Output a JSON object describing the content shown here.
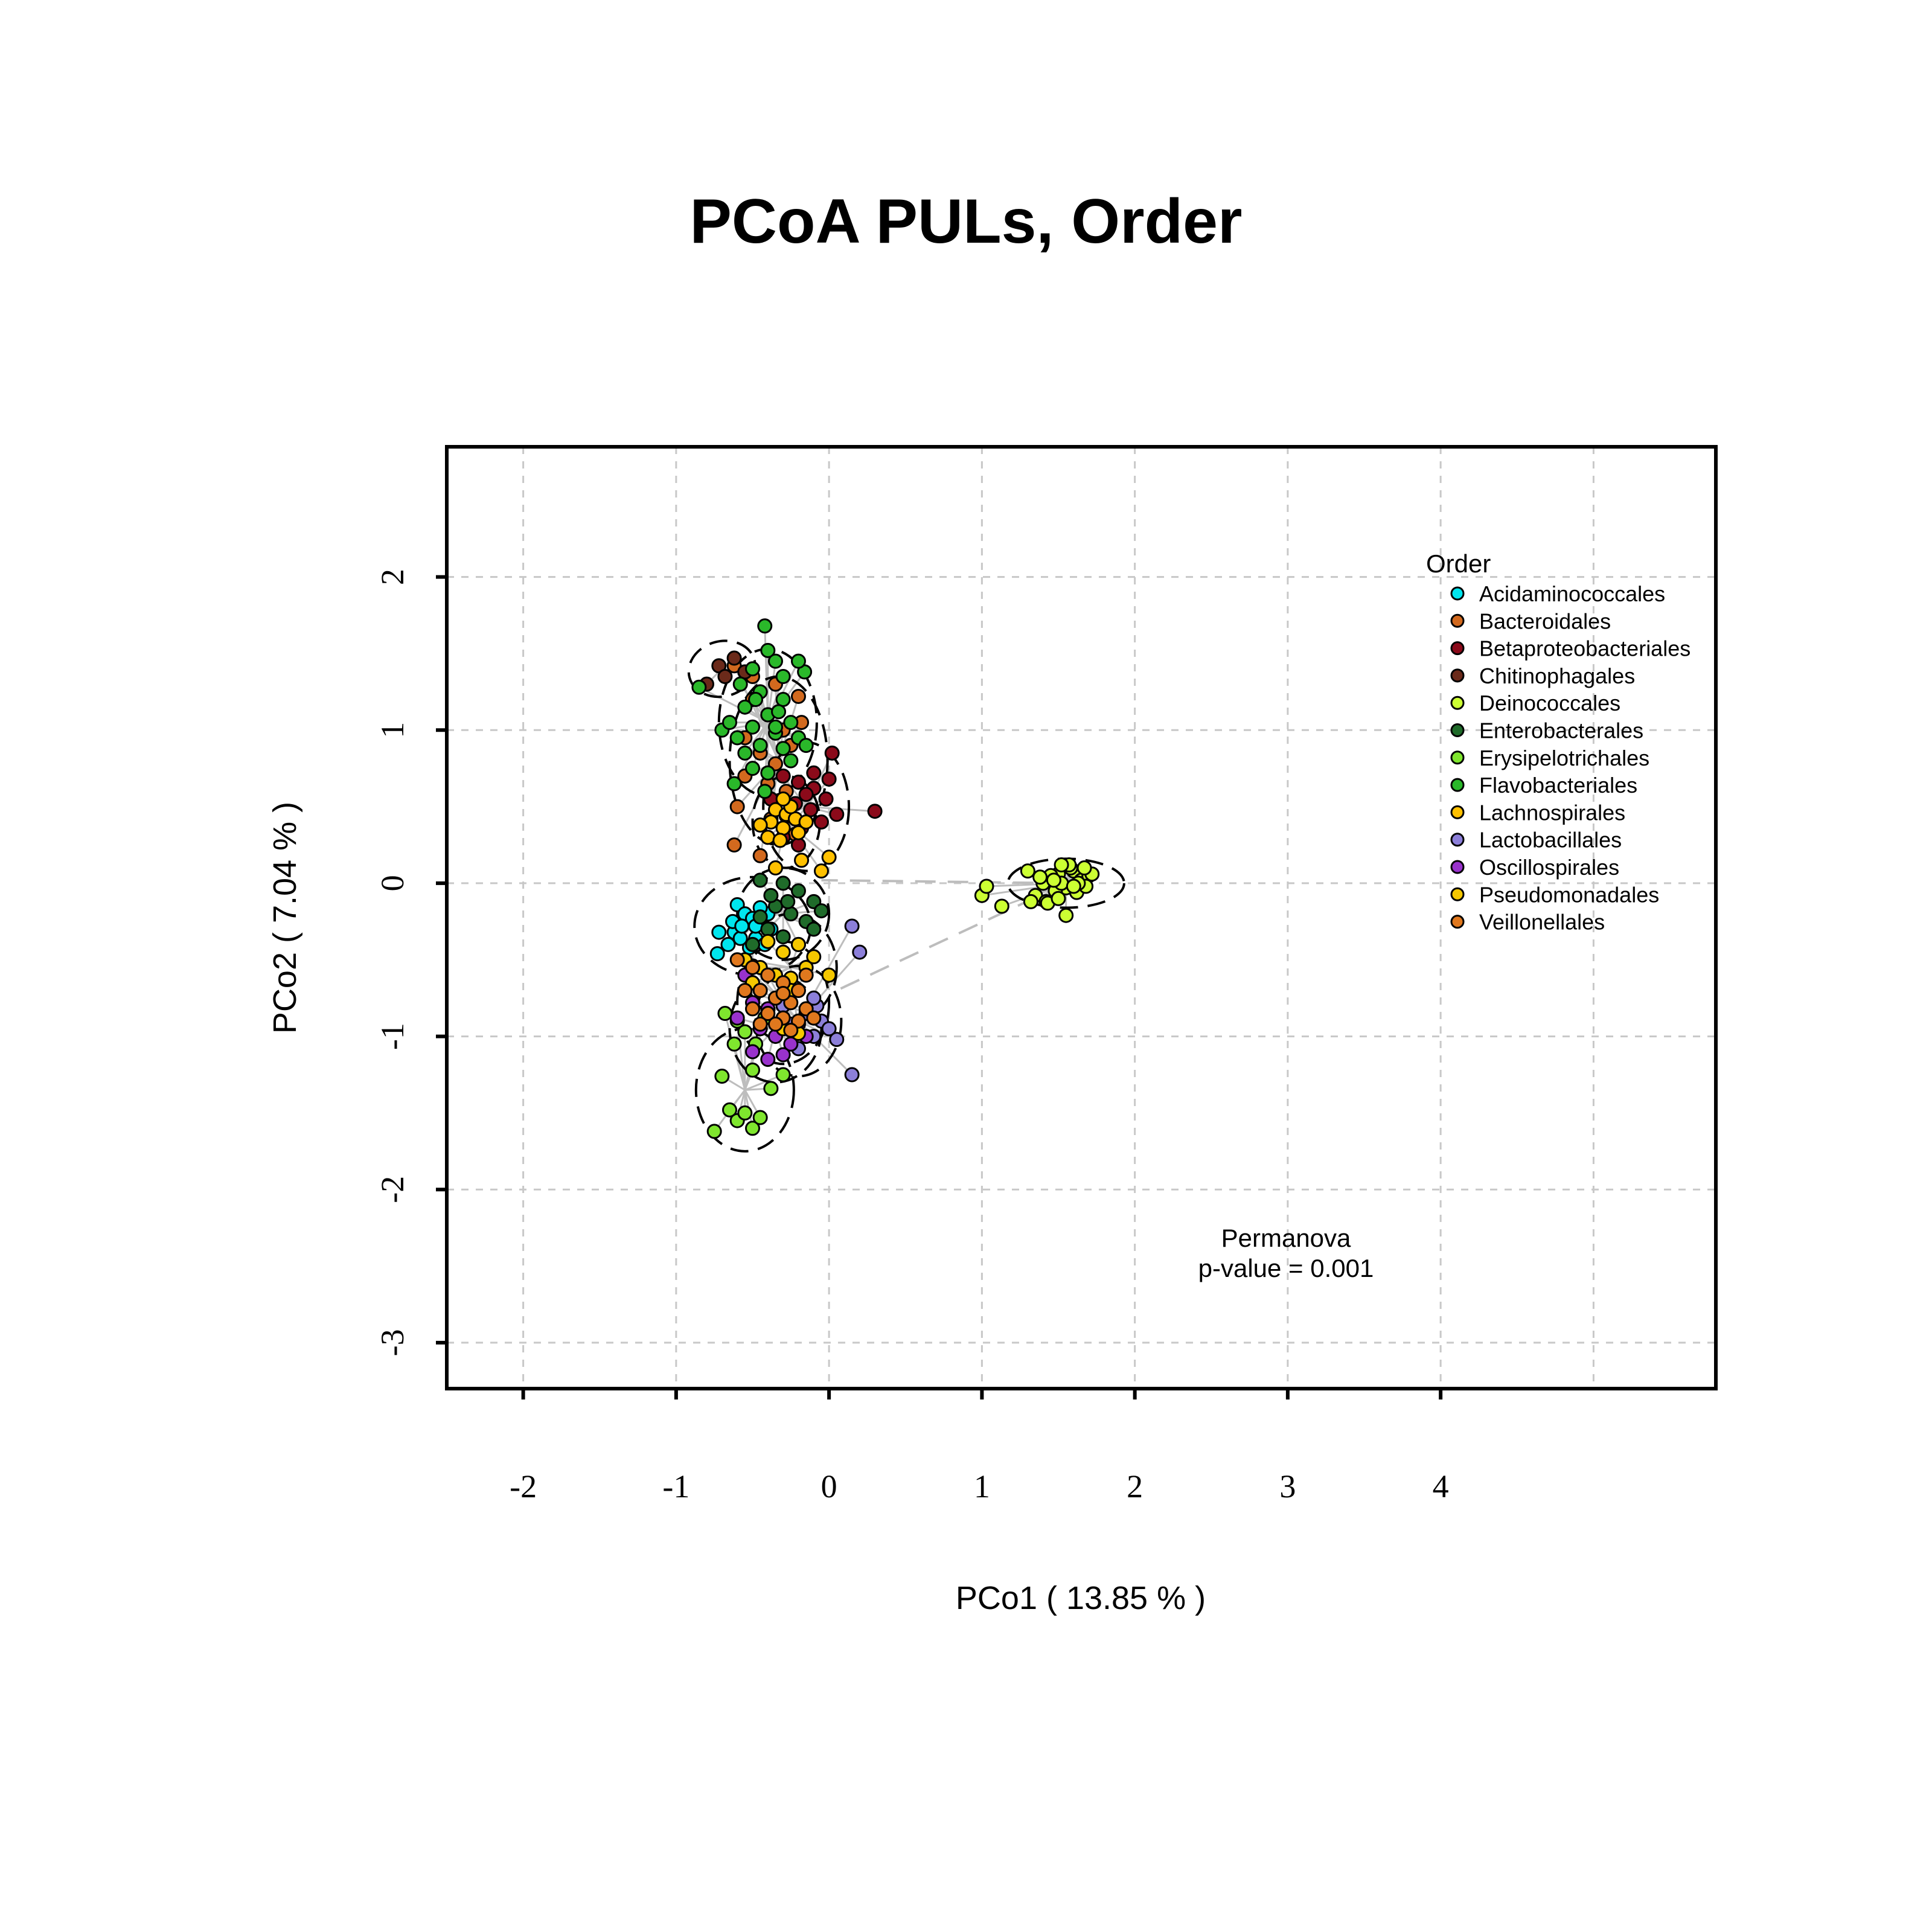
{
  "chart_data": {
    "type": "scatter",
    "title": "PCoA PULs, Order",
    "xlabel": "PCo1 ( 13.85 % )",
    "ylabel": "PCo2 ( 7.04 % )",
    "xlim": [
      -2.5,
      5.8
    ],
    "ylim": [
      -3.3,
      2.85
    ],
    "xticks": [
      -2,
      -1,
      0,
      1,
      2,
      3,
      4
    ],
    "yticks": [
      -3,
      -2,
      -1,
      0,
      1,
      2
    ],
    "xtick_labels": [
      "-2",
      "-1",
      "0",
      "1",
      "2",
      "3",
      "4"
    ],
    "ytick_labels": [
      "-3",
      "-2",
      "-1",
      "0",
      "1",
      "2"
    ],
    "xgrid": [
      -2,
      -1,
      0,
      1,
      2,
      3,
      4,
      5
    ],
    "ygrid": [
      -3,
      -2,
      -1,
      0,
      1,
      2
    ],
    "grid": true,
    "legend": {
      "title": "Order",
      "position": "top-right",
      "entries": [
        {
          "name": "Acidaminococcales",
          "color": "#00e5ee"
        },
        {
          "name": "Bacteroidales",
          "color": "#d2691e"
        },
        {
          "name": "Betaproteobacteriales",
          "color": "#8b0a1a"
        },
        {
          "name": "Chitinophagales",
          "color": "#6b2a1a"
        },
        {
          "name": "Deinococcales",
          "color": "#ccff33"
        },
        {
          "name": "Enterobacterales",
          "color": "#1f6b2a"
        },
        {
          "name": "Erysipelotrichales",
          "color": "#7fe62e"
        },
        {
          "name": "Flavobacteriales",
          "color": "#2ab82a"
        },
        {
          "name": "Lachnospirales",
          "color": "#ffc000"
        },
        {
          "name": "Lactobacillales",
          "color": "#8c7fd9"
        },
        {
          "name": "Oscillospirales",
          "color": "#9932cc"
        },
        {
          "name": "Pseudomonadales",
          "color": "#f5c800"
        },
        {
          "name": "Veillonellales",
          "color": "#e0781e"
        }
      ]
    },
    "annotation": [
      "Permanova",
      "p-value = 0.001"
    ],
    "series": [
      {
        "name": "Acidaminococcales",
        "color": "#00e5ee",
        "centroid": [
          -0.5,
          -0.28
        ],
        "ellipse": {
          "rx": 0.38,
          "ry": 0.32,
          "angle": 0
        },
        "points": [
          [
            -0.72,
            -0.32
          ],
          [
            -0.73,
            -0.46
          ],
          [
            -0.6,
            -0.14
          ],
          [
            -0.55,
            -0.2
          ],
          [
            -0.5,
            -0.23
          ],
          [
            -0.45,
            -0.26
          ],
          [
            -0.38,
            -0.3
          ],
          [
            -0.52,
            -0.42
          ],
          [
            -0.48,
            -0.36
          ],
          [
            -0.62,
            -0.32
          ],
          [
            -0.58,
            -0.36
          ],
          [
            -0.42,
            -0.4
          ],
          [
            -0.55,
            -0.5
          ],
          [
            -0.48,
            -0.28
          ],
          [
            -0.63,
            -0.25
          ],
          [
            -0.4,
            -0.2
          ],
          [
            -0.66,
            -0.4
          ],
          [
            -0.5,
            -0.54
          ],
          [
            -0.45,
            -0.16
          ],
          [
            -0.57,
            -0.28
          ]
        ]
      },
      {
        "name": "Bacteroidales",
        "color": "#d2691e",
        "centroid": [
          -0.33,
          0.8
        ],
        "ellipse": {
          "rx": 0.32,
          "ry": 0.55,
          "angle": 0
        },
        "points": [
          [
            -0.62,
            1.42
          ],
          [
            -0.5,
            1.35
          ],
          [
            -0.35,
            1.3
          ],
          [
            -0.2,
            1.22
          ],
          [
            -0.4,
            1.1
          ],
          [
            -0.3,
            1.0
          ],
          [
            -0.55,
            0.95
          ],
          [
            -0.45,
            0.85
          ],
          [
            -0.25,
            0.9
          ],
          [
            -0.35,
            0.78
          ],
          [
            -0.55,
            0.7
          ],
          [
            -0.4,
            0.65
          ],
          [
            -0.28,
            0.6
          ],
          [
            -0.5,
            1.2
          ],
          [
            -0.18,
            1.05
          ],
          [
            -0.6,
            0.5
          ],
          [
            -0.38,
            0.42
          ],
          [
            -0.22,
            0.32
          ],
          [
            -0.62,
            0.25
          ],
          [
            -0.45,
            0.18
          ]
        ]
      },
      {
        "name": "Betaproteobacteriales",
        "color": "#8b0a1a",
        "centroid": [
          -0.15,
          0.5
        ],
        "ellipse": {
          "rx": 0.28,
          "ry": 0.42,
          "angle": 0
        },
        "points": [
          [
            -0.3,
            0.7
          ],
          [
            -0.2,
            0.66
          ],
          [
            -0.1,
            0.62
          ],
          [
            -0.02,
            0.55
          ],
          [
            -0.22,
            0.52
          ],
          [
            -0.12,
            0.48
          ],
          [
            -0.28,
            0.44
          ],
          [
            -0.05,
            0.4
          ],
          [
            -0.18,
            0.36
          ],
          [
            -0.3,
            0.3
          ],
          [
            0.05,
            0.45
          ],
          [
            0.3,
            0.47
          ],
          [
            -0.1,
            0.72
          ],
          [
            -0.38,
            0.55
          ],
          [
            0.0,
            0.68
          ],
          [
            -0.2,
            0.25
          ],
          [
            0.02,
            0.85
          ],
          [
            -0.15,
            0.58
          ]
        ]
      },
      {
        "name": "Chitinophagales",
        "color": "#6b2a1a",
        "centroid": [
          -0.7,
          1.4
        ],
        "ellipse": {
          "rx": 0.22,
          "ry": 0.18,
          "angle": -15
        },
        "points": [
          [
            -0.72,
            1.42
          ],
          [
            -0.62,
            1.47
          ],
          [
            -0.55,
            1.38
          ],
          [
            -0.8,
            1.3
          ],
          [
            -0.68,
            1.35
          ]
        ]
      },
      {
        "name": "Deinococcales",
        "color": "#ccff33",
        "centroid": [
          1.55,
          0.0
        ],
        "ellipse": {
          "rx": 0.38,
          "ry": 0.16,
          "angle": 0
        },
        "points": [
          [
            1.3,
            0.08
          ],
          [
            1.4,
            0.0
          ],
          [
            1.5,
            0.06
          ],
          [
            1.55,
            -0.03
          ],
          [
            1.6,
            0.08
          ],
          [
            1.65,
            0.02
          ],
          [
            1.7,
            0.05
          ],
          [
            1.48,
            -0.05
          ],
          [
            1.58,
            0.1
          ],
          [
            1.62,
            -0.06
          ],
          [
            1.45,
            0.05
          ],
          [
            1.52,
            0.0
          ],
          [
            1.68,
            -0.02
          ],
          [
            1.35,
            -0.08
          ],
          [
            1.72,
            0.06
          ],
          [
            1.57,
            0.12
          ],
          [
            1.42,
            -0.12
          ],
          [
            1.63,
            0.0
          ],
          [
            1.55,
            -0.21
          ],
          [
            1.47,
            0.02
          ],
          [
            1.32,
            -0.12
          ],
          [
            1.38,
            0.04
          ],
          [
            1.52,
            0.12
          ],
          [
            1.6,
            -0.02
          ],
          [
            1.0,
            -0.08
          ],
          [
            1.03,
            -0.02
          ],
          [
            1.13,
            -0.15
          ],
          [
            1.43,
            -0.13
          ],
          [
            1.5,
            -0.1
          ],
          [
            1.67,
            0.1
          ]
        ]
      },
      {
        "name": "Enterobacterales",
        "color": "#1f6b2a",
        "centroid": [
          -0.3,
          -0.2
        ],
        "ellipse": {
          "rx": 0.3,
          "ry": 0.3,
          "angle": 0
        },
        "points": [
          [
            -0.45,
            0.02
          ],
          [
            -0.3,
            0.0
          ],
          [
            -0.2,
            -0.05
          ],
          [
            -0.1,
            -0.12
          ],
          [
            -0.35,
            -0.15
          ],
          [
            -0.25,
            -0.2
          ],
          [
            -0.15,
            -0.25
          ],
          [
            -0.4,
            -0.3
          ],
          [
            -0.3,
            -0.35
          ],
          [
            -0.2,
            -0.4
          ],
          [
            -0.5,
            -0.4
          ],
          [
            -0.1,
            -0.3
          ],
          [
            -0.38,
            -0.08
          ],
          [
            -0.27,
            -0.12
          ],
          [
            -0.45,
            -0.22
          ],
          [
            -0.05,
            -0.18
          ]
        ]
      },
      {
        "name": "Erysipelotrichales",
        "color": "#7fe62e",
        "centroid": [
          -0.55,
          -1.35
        ],
        "ellipse": {
          "rx": 0.32,
          "ry": 0.4,
          "angle": 0
        },
        "points": [
          [
            -0.75,
            -1.62
          ],
          [
            -0.6,
            -1.55
          ],
          [
            -0.5,
            -1.6
          ],
          [
            -0.55,
            -1.5
          ],
          [
            -0.65,
            -1.48
          ],
          [
            -0.45,
            -1.53
          ],
          [
            -0.7,
            -1.26
          ],
          [
            -0.5,
            -1.22
          ],
          [
            -0.38,
            -1.34
          ],
          [
            -0.3,
            -1.25
          ],
          [
            -0.62,
            -1.05
          ],
          [
            -0.55,
            -0.97
          ],
          [
            -0.48,
            -1.05
          ],
          [
            -0.68,
            -0.85
          ],
          [
            -0.6,
            -0.9
          ],
          [
            -0.42,
            -0.88
          ]
        ]
      },
      {
        "name": "Flavobacteriales",
        "color": "#2ab82a",
        "centroid": [
          -0.4,
          1.05
        ],
        "ellipse": {
          "rx": 0.32,
          "ry": 0.48,
          "angle": 0
        },
        "points": [
          [
            -0.42,
            1.68
          ],
          [
            -0.4,
            1.52
          ],
          [
            -0.35,
            1.45
          ],
          [
            -0.5,
            1.4
          ],
          [
            -0.3,
            1.35
          ],
          [
            -0.58,
            1.3
          ],
          [
            -0.45,
            1.25
          ],
          [
            -0.3,
            1.2
          ],
          [
            -0.55,
            1.15
          ],
          [
            -0.4,
            1.1
          ],
          [
            -0.25,
            1.05
          ],
          [
            -0.5,
            1.02
          ],
          [
            -0.35,
            0.98
          ],
          [
            -0.2,
            0.95
          ],
          [
            -0.6,
            0.95
          ],
          [
            -0.45,
            0.9
          ],
          [
            -0.3,
            0.88
          ],
          [
            -0.7,
            1.0
          ],
          [
            -0.25,
            0.8
          ],
          [
            -0.5,
            0.75
          ],
          [
            -0.4,
            0.72
          ],
          [
            -0.55,
            0.85
          ],
          [
            -0.35,
            1.02
          ],
          [
            -0.85,
            1.28
          ],
          [
            -0.16,
            1.38
          ],
          [
            -0.2,
            1.45
          ],
          [
            -0.65,
            1.05
          ],
          [
            -0.48,
            1.2
          ],
          [
            -0.33,
            1.12
          ],
          [
            -0.15,
            0.9
          ],
          [
            -0.42,
            0.6
          ],
          [
            -0.62,
            0.65
          ]
        ]
      },
      {
        "name": "Lachnospirales",
        "color": "#ffc000",
        "centroid": [
          -0.28,
          0.4
        ],
        "ellipse": {
          "rx": 0.22,
          "ry": 0.3,
          "angle": 0
        },
        "points": [
          [
            -0.35,
            0.48
          ],
          [
            -0.28,
            0.45
          ],
          [
            -0.22,
            0.42
          ],
          [
            -0.38,
            0.4
          ],
          [
            -0.3,
            0.36
          ],
          [
            -0.2,
            0.33
          ],
          [
            -0.4,
            0.3
          ],
          [
            -0.32,
            0.28
          ],
          [
            -0.25,
            0.5
          ],
          [
            -0.15,
            0.4
          ],
          [
            -0.45,
            0.38
          ],
          [
            -0.3,
            0.55
          ],
          [
            -0.18,
            0.15
          ],
          [
            -0.35,
            0.1
          ],
          [
            -0.05,
            0.08
          ],
          [
            0.0,
            0.17
          ]
        ]
      },
      {
        "name": "Lactobacillales",
        "color": "#8c7fd9",
        "centroid": [
          -0.2,
          -0.9
        ],
        "ellipse": {
          "rx": 0.28,
          "ry": 0.36,
          "angle": 0
        },
        "points": [
          [
            -0.05,
            -0.9
          ],
          [
            0.0,
            -0.95
          ],
          [
            -0.1,
            -1.0
          ],
          [
            -0.15,
            -0.85
          ],
          [
            -0.25,
            -0.92
          ],
          [
            0.05,
            -1.02
          ],
          [
            0.15,
            -0.28
          ],
          [
            0.2,
            -0.45
          ],
          [
            0.15,
            -1.25
          ],
          [
            -0.08,
            -0.8
          ],
          [
            -0.3,
            -0.8
          ],
          [
            -0.2,
            -1.08
          ],
          [
            -0.1,
            -0.75
          ]
        ]
      },
      {
        "name": "Oscillospirales",
        "color": "#9932cc",
        "centroid": [
          -0.35,
          -0.95
        ],
        "ellipse": {
          "rx": 0.3,
          "ry": 0.35,
          "angle": 0
        },
        "points": [
          [
            -0.5,
            -0.78
          ],
          [
            -0.4,
            -0.82
          ],
          [
            -0.3,
            -0.88
          ],
          [
            -0.2,
            -0.92
          ],
          [
            -0.45,
            -0.95
          ],
          [
            -0.35,
            -1.0
          ],
          [
            -0.25,
            -1.05
          ],
          [
            -0.5,
            -1.1
          ],
          [
            -0.4,
            -1.15
          ],
          [
            -0.3,
            -1.12
          ],
          [
            -0.55,
            -0.6
          ],
          [
            -0.6,
            -0.88
          ],
          [
            -0.15,
            -1.0
          ]
        ]
      },
      {
        "name": "Pseudomonadales",
        "color": "#f5c800",
        "centroid": [
          -0.25,
          -0.55
        ],
        "ellipse": {
          "rx": 0.3,
          "ry": 0.35,
          "angle": 0
        },
        "points": [
          [
            -0.55,
            -0.5
          ],
          [
            -0.45,
            -0.55
          ],
          [
            -0.35,
            -0.6
          ],
          [
            -0.25,
            -0.62
          ],
          [
            -0.15,
            -0.55
          ],
          [
            -0.3,
            -0.45
          ],
          [
            -0.2,
            -0.4
          ],
          [
            -0.4,
            -0.38
          ],
          [
            -0.1,
            -0.48
          ],
          [
            0.0,
            -0.6
          ],
          [
            -0.5,
            -0.65
          ],
          [
            -0.25,
            -0.7
          ],
          [
            -0.3,
            -0.95
          ],
          [
            -0.2,
            -0.98
          ]
        ]
      },
      {
        "name": "Veillonellales",
        "color": "#e0781e",
        "centroid": [
          -0.3,
          -0.78
        ],
        "ellipse": {
          "rx": 0.3,
          "ry": 0.4,
          "angle": 0
        },
        "points": [
          [
            -0.6,
            -0.5
          ],
          [
            -0.5,
            -0.55
          ],
          [
            -0.4,
            -0.6
          ],
          [
            -0.3,
            -0.65
          ],
          [
            -0.2,
            -0.7
          ],
          [
            -0.45,
            -0.7
          ],
          [
            -0.35,
            -0.75
          ],
          [
            -0.25,
            -0.78
          ],
          [
            -0.15,
            -0.82
          ],
          [
            -0.4,
            -0.85
          ],
          [
            -0.3,
            -0.88
          ],
          [
            -0.2,
            -0.9
          ],
          [
            -0.5,
            -0.82
          ],
          [
            -0.35,
            -0.92
          ],
          [
            -0.25,
            -0.96
          ],
          [
            -0.1,
            -0.88
          ],
          [
            -0.45,
            -0.92
          ],
          [
            -0.3,
            -0.72
          ],
          [
            -0.15,
            -0.6
          ],
          [
            -0.55,
            -0.7
          ]
        ]
      }
    ]
  }
}
